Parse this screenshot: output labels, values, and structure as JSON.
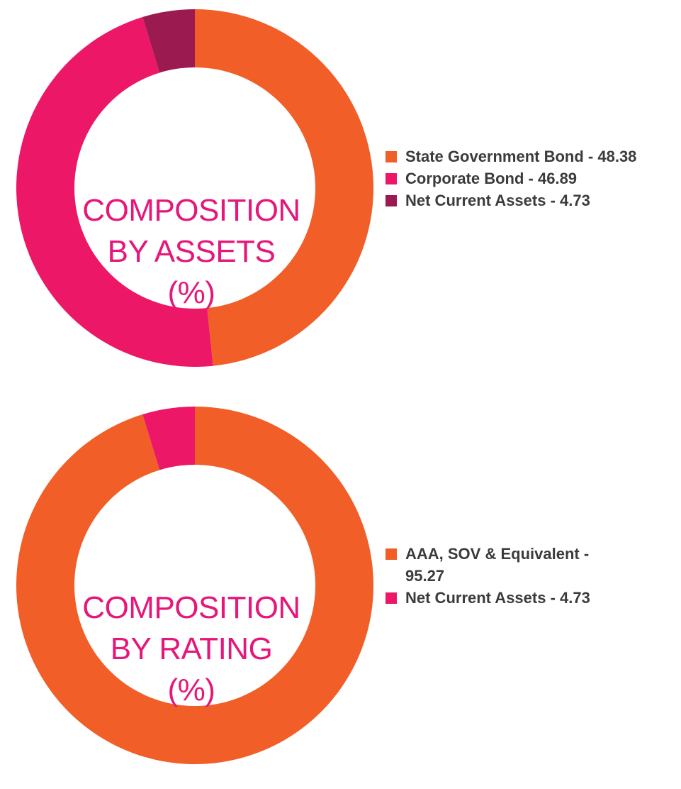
{
  "chart_data": [
    {
      "type": "pie",
      "title_lines": [
        "COMPOSITION",
        "BY ASSETS",
        "(%)"
      ],
      "categories": [
        "State Government Bond",
        "Corporate Bond",
        "Net Current Assets"
      ],
      "values": [
        48.38,
        46.89,
        4.73
      ],
      "colors": [
        "#f15e27",
        "#ec1766",
        "#9b1a4f"
      ],
      "legend_labels": [
        "State Government Bond - 48.38",
        "Corporate Bond - 46.89",
        "Net Current Assets - 4.73"
      ],
      "legend_position": "right",
      "donut": true
    },
    {
      "type": "pie",
      "title_lines": [
        "COMPOSITION",
        "BY RATING",
        "(%)"
      ],
      "categories": [
        "AAA, SOV & Equivalent",
        "Net Current Assets"
      ],
      "values": [
        95.27,
        4.73
      ],
      "colors": [
        "#f15e27",
        "#ec1766"
      ],
      "legend_labels": [
        "AAA, SOV & Equivalent - 95.27",
        "Net Current Assets - 4.73"
      ],
      "legend_position": "right",
      "donut": true
    }
  ]
}
